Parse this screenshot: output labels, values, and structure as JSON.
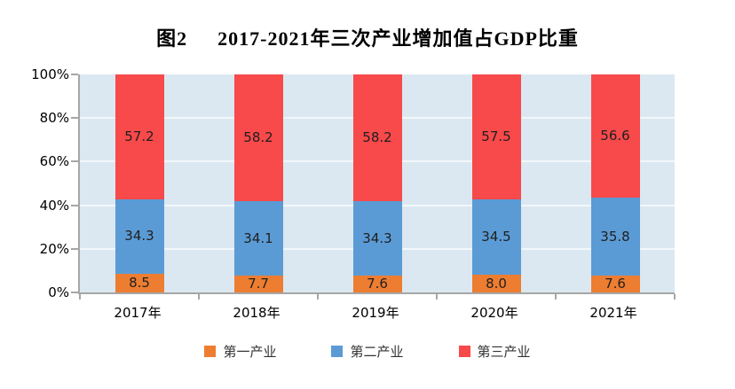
{
  "chart_data": {
    "type": "stacked-bar",
    "title_prefix": "图2",
    "title": "2017-2021年三次产业增加值占GDP比重",
    "categories": [
      "2017年",
      "2018年",
      "2019年",
      "2020年",
      "2021年"
    ],
    "series": [
      {
        "name": "第一产业",
        "color": "#ED7D31",
        "values": [
          "8.5",
          "7.7",
          "7.6",
          "8.0",
          "7.6"
        ]
      },
      {
        "name": "第二产业",
        "color": "#5B9BD5",
        "values": [
          "34.3",
          "34.1",
          "34.3",
          "34.5",
          "35.8"
        ]
      },
      {
        "name": "第三产业",
        "color": "#F8494B",
        "values": [
          "57.2",
          "58.2",
          "58.2",
          "57.5",
          "56.6"
        ]
      }
    ],
    "y_ticks": [
      "100%",
      "80%",
      "60%",
      "40%",
      "20%",
      "0%"
    ],
    "ylim": [
      0,
      100
    ],
    "unit": "%",
    "legend_position": "bottom",
    "grid": true,
    "colors": {
      "plot_background": "#DBE8F1",
      "gridline": "#F2F7FA",
      "axis": "#A6A6A6",
      "data_label": "#1F1F1F"
    }
  }
}
